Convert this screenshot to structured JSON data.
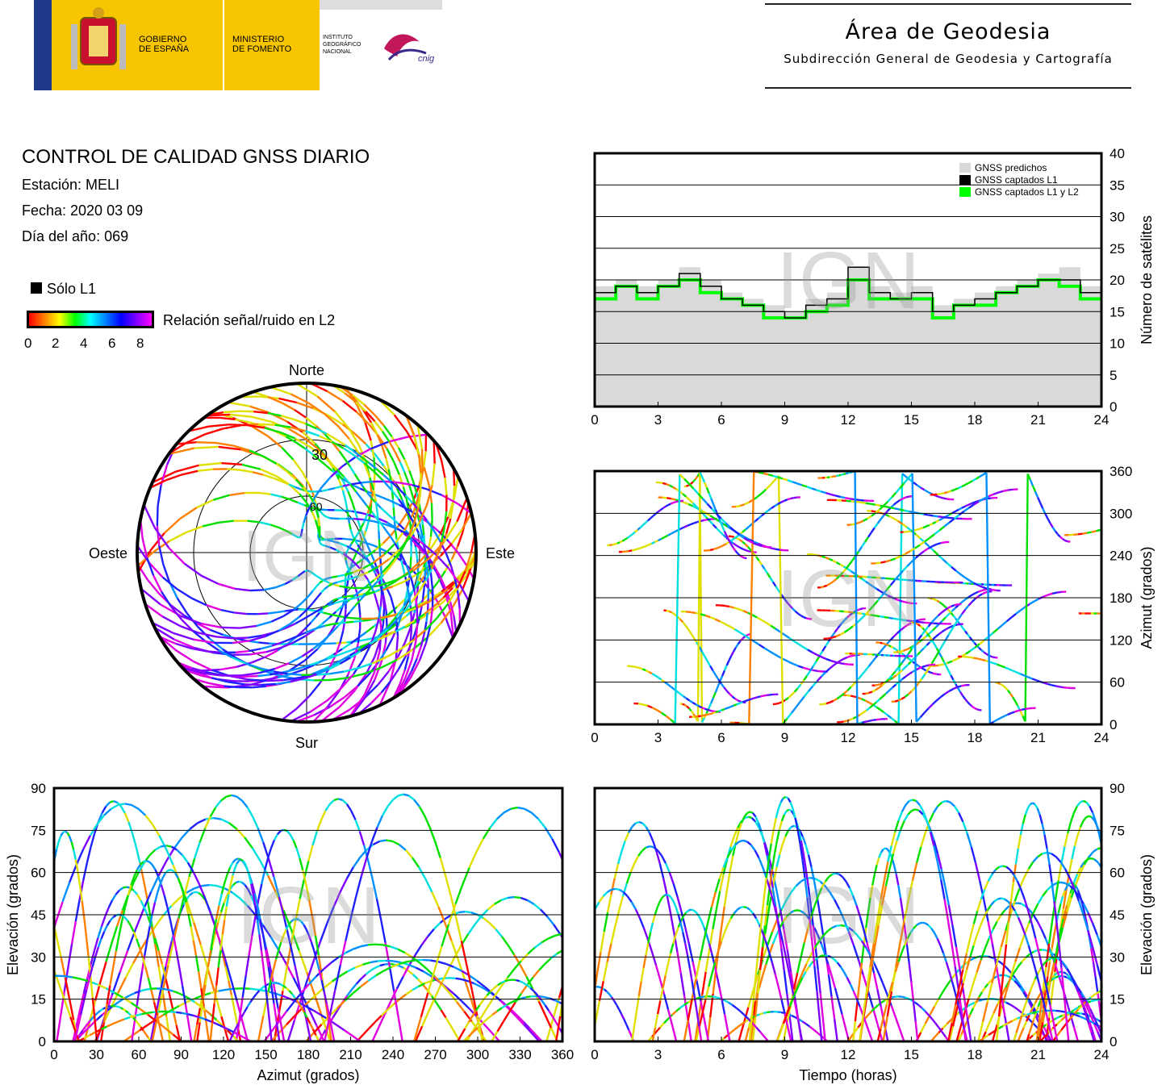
{
  "header": {
    "gov_line1": "GOBIERNO",
    "gov_line2": "DE ESPAÑA",
    "min_line1": "MINISTERIO",
    "min_line2": "DE FOMENTO",
    "ign_line1": "INSTITUTO",
    "ign_line2": "GEOGRÁFICO",
    "ign_line3": "NACIONAL",
    "cnig": "cnig",
    "area_title": "Área de Geodesia",
    "area_subtitle": "Subdirección General de Geodesia y Cartografía"
  },
  "report": {
    "title": "CONTROL DE CALIDAD GNSS DIARIO",
    "station": "Estación: MELI",
    "date": "Fecha: 2020 03 09",
    "doy": "Día del año: 069"
  },
  "legend": {
    "solo_l1": "Sólo L1",
    "snr_label": "Relación señal/ruido en L2",
    "snr_ticks": [
      "0",
      "2",
      "4",
      "6",
      "8"
    ]
  },
  "colors": {
    "predicted": "#d9d9d9",
    "l1": "#000000",
    "l1l2": "#00ff00",
    "grid": "#000000"
  },
  "chart_data": [
    {
      "id": "sat-count",
      "type": "area",
      "xlabel": "",
      "ylabel": "Número de satélites",
      "xlim": [
        0,
        24
      ],
      "ylim": [
        0,
        40
      ],
      "xticks": [
        "0",
        "3",
        "6",
        "9",
        "12",
        "15",
        "18",
        "21",
        "24"
      ],
      "yticks": [
        "0",
        "5",
        "10",
        "15",
        "20",
        "25",
        "30",
        "35",
        "40"
      ],
      "watermark": "IGN",
      "legend_position": "top-right",
      "x": [
        0,
        1,
        2,
        3,
        4,
        5,
        6,
        7,
        8,
        9,
        10,
        11,
        12,
        13,
        14,
        15,
        16,
        17,
        18,
        19,
        20,
        21,
        22,
        23,
        24
      ],
      "series": [
        {
          "name": "GNSS predichos",
          "values": [
            19,
            20,
            19,
            20,
            22,
            20,
            18,
            17,
            16,
            15,
            17,
            18,
            22,
            19,
            18,
            19,
            16,
            17,
            18,
            19,
            20,
            21,
            22,
            19,
            17
          ]
        },
        {
          "name": "GNSS captados L1",
          "values": [
            18,
            19,
            18,
            19,
            21,
            19,
            17,
            16,
            15,
            14,
            16,
            17,
            22,
            18,
            17,
            18,
            15,
            16,
            17,
            18,
            19,
            20,
            20,
            18,
            16
          ]
        },
        {
          "name": "GNSS captados L1 y L2",
          "values": [
            17,
            19,
            17,
            19,
            20,
            18,
            17,
            16,
            14,
            14,
            15,
            16,
            20,
            17,
            17,
            17,
            14,
            16,
            16,
            18,
            19,
            20,
            19,
            17,
            16
          ]
        }
      ]
    },
    {
      "id": "azimuth-time",
      "type": "scatter",
      "xlabel": "",
      "ylabel": "Azimut (grados)",
      "xlim": [
        0,
        24
      ],
      "ylim": [
        0,
        360
      ],
      "xticks": [
        "0",
        "3",
        "6",
        "9",
        "12",
        "15",
        "18",
        "21",
        "24"
      ],
      "yticks": [
        "0",
        "60",
        "120",
        "180",
        "240",
        "300",
        "360"
      ],
      "watermark": "IGN"
    },
    {
      "id": "skyplot",
      "type": "scatter",
      "labels": {
        "north": "Norte",
        "south": "Sur",
        "east": "Este",
        "west": "Oeste"
      },
      "ring_labels": [
        "30",
        "60"
      ],
      "watermark": "IGN"
    },
    {
      "id": "elevation-azimuth",
      "type": "scatter",
      "xlabel": "Azimut (grados)",
      "ylabel": "Elevación (grados)",
      "xlim": [
        0,
        360
      ],
      "ylim": [
        0,
        90
      ],
      "xticks": [
        "0",
        "30",
        "60",
        "90",
        "120",
        "150",
        "180",
        "210",
        "240",
        "270",
        "300",
        "330",
        "360"
      ],
      "yticks": [
        "0",
        "15",
        "30",
        "45",
        "60",
        "75",
        "90"
      ],
      "watermark": "IGN"
    },
    {
      "id": "elevation-time",
      "type": "line",
      "xlabel": "Tiempo (horas)",
      "ylabel": "Elevación (grados)",
      "xlim": [
        0,
        24
      ],
      "ylim": [
        0,
        90
      ],
      "xticks": [
        "0",
        "3",
        "6",
        "9",
        "12",
        "15",
        "18",
        "21",
        "24"
      ],
      "yticks": [
        "0",
        "15",
        "30",
        "45",
        "60",
        "75",
        "90"
      ],
      "watermark": "IGN"
    }
  ]
}
